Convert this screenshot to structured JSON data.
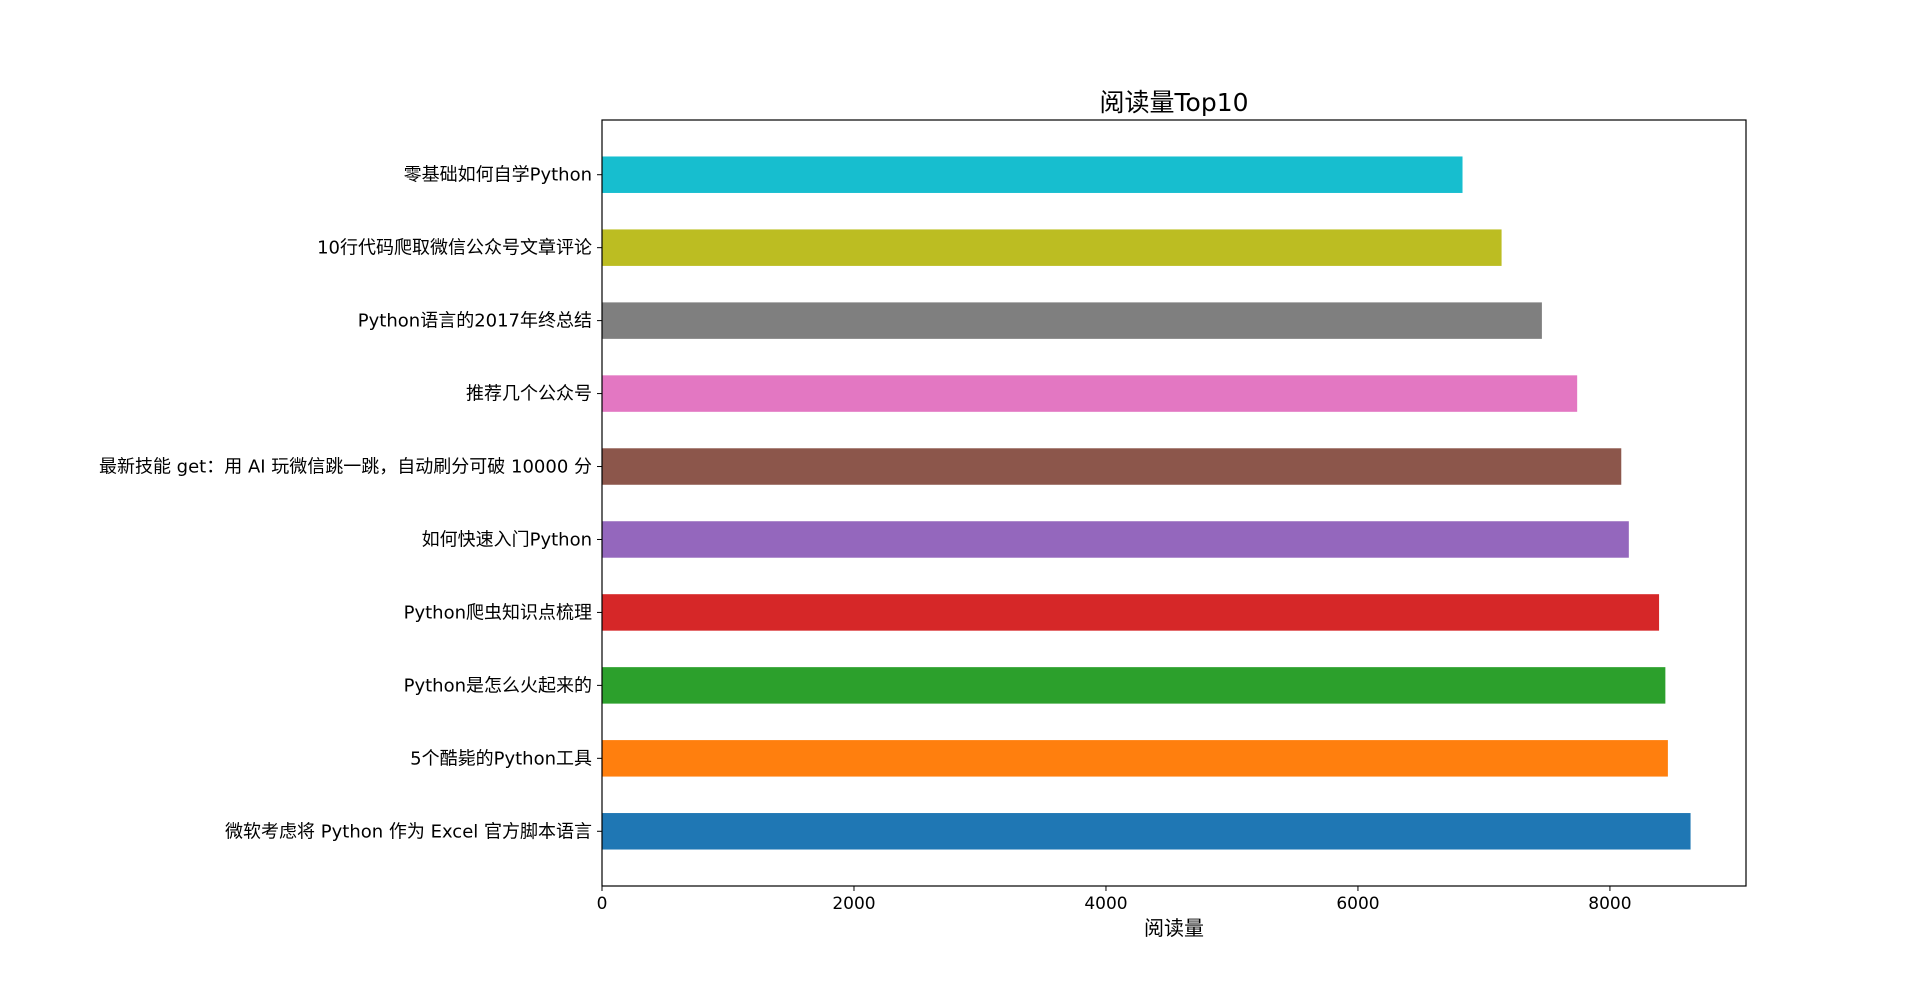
{
  "chart_data": {
    "type": "bar",
    "orientation": "horizontal",
    "title": "阅读量Top10",
    "xlabel": "阅读量",
    "ylabel": "",
    "xlim": [
      0,
      9080
    ],
    "xticks": [
      0,
      2000,
      4000,
      6000,
      8000
    ],
    "grid": false,
    "legend": "none",
    "categories": [
      "微软考虑将 Python 作为 Excel 官方脚本语言",
      "5个酷毙的Python工具",
      "Python是怎么火起来的",
      "Python爬虫知识点梳理",
      "如何快速入门Python",
      "最新技能 get：用 AI 玩微信跳一跳，自动刷分可破 10000 分",
      "推荐几个公众号",
      "Python语言的2017年终总结",
      "10行代码爬取微信公众号文章评论",
      "零基础如何自学Python"
    ],
    "values": [
      8640,
      8460,
      8440,
      8390,
      8150,
      8090,
      7740,
      7460,
      7140,
      6830
    ],
    "colors": [
      "#1f77b4",
      "#ff7f0e",
      "#2ca02c",
      "#d62728",
      "#9467bd",
      "#8c564b",
      "#e377c2",
      "#7f7f7f",
      "#bcbd22",
      "#17becf"
    ]
  }
}
